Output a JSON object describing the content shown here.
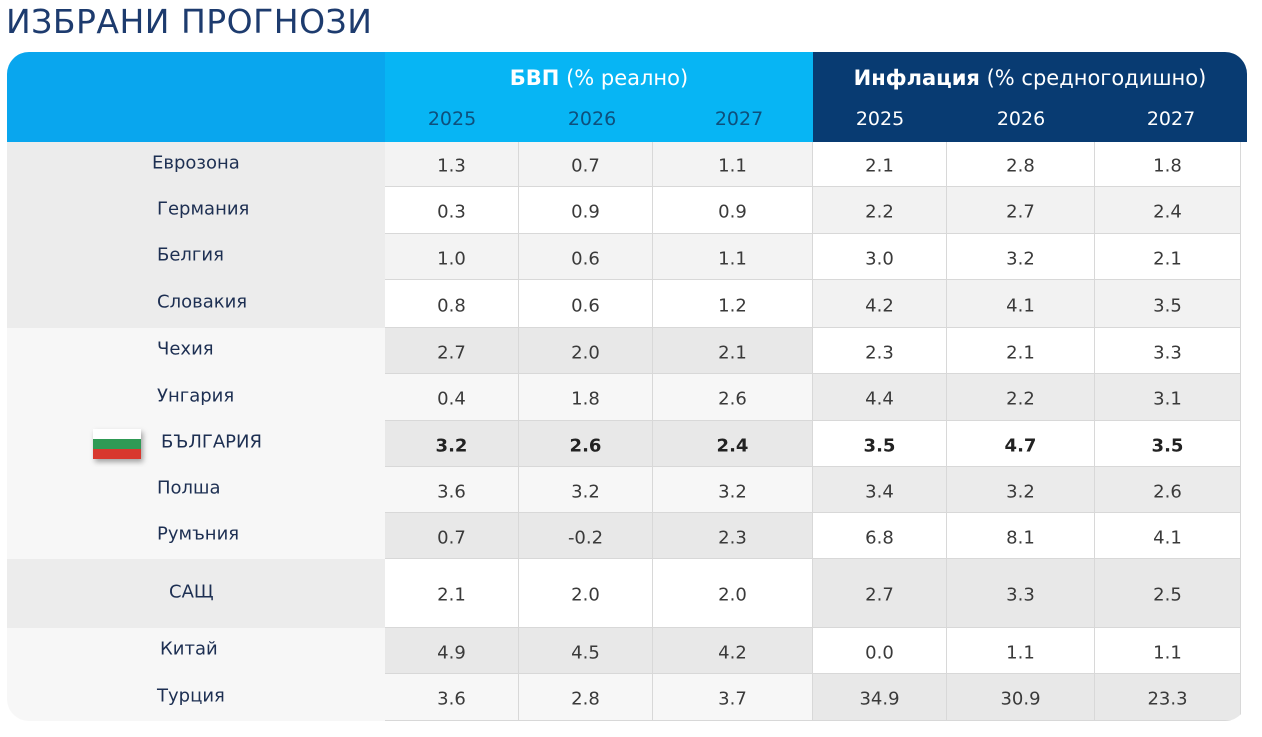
{
  "title": "ИЗБРАНИ ПРОГНОЗИ",
  "header": {
    "gdp_bold": "БВП",
    "gdp_rest": " (% реално)",
    "inf_bold": "Инфлация",
    "inf_rest": " (% средногодишно)",
    "years": [
      "2025",
      "2026",
      "2027"
    ]
  },
  "rows": [
    {
      "name": "Еврозона",
      "gdp": [
        "1.3",
        "0.7",
        "1.1"
      ],
      "inf": [
        "2.1",
        "2.8",
        "1.8"
      ]
    },
    {
      "name": "Германия",
      "gdp": [
        "0.3",
        "0.9",
        "0.9"
      ],
      "inf": [
        "2.2",
        "2.7",
        "2.4"
      ]
    },
    {
      "name": "Белгия",
      "gdp": [
        "1.0",
        "0.6",
        "1.1"
      ],
      "inf": [
        "3.0",
        "3.2",
        "2.1"
      ]
    },
    {
      "name": "Словакия",
      "gdp": [
        "0.8",
        "0.6",
        "1.2"
      ],
      "inf": [
        "4.2",
        "4.1",
        "3.5"
      ]
    },
    {
      "name": "Чехия",
      "gdp": [
        "2.7",
        "2.0",
        "2.1"
      ],
      "inf": [
        "2.3",
        "2.1",
        "3.3"
      ]
    },
    {
      "name": "Унгария",
      "gdp": [
        "0.4",
        "1.8",
        "2.6"
      ],
      "inf": [
        "4.4",
        "2.2",
        "3.1"
      ]
    },
    {
      "name": "БЪЛГАРИЯ",
      "gdp": [
        "3.2",
        "2.6",
        "2.4"
      ],
      "inf": [
        "3.5",
        "4.7",
        "3.5"
      ]
    },
    {
      "name": "Полша",
      "gdp": [
        "3.6",
        "3.2",
        "3.2"
      ],
      "inf": [
        "3.4",
        "3.2",
        "2.6"
      ]
    },
    {
      "name": "Румъния",
      "gdp": [
        "0.7",
        "-0.2",
        "2.3"
      ],
      "inf": [
        "6.8",
        "8.1",
        "4.1"
      ]
    },
    {
      "name": "САЩ",
      "gdp": [
        "2.1",
        "2.0",
        "2.0"
      ],
      "inf": [
        "2.7",
        "3.3",
        "2.5"
      ]
    },
    {
      "name": "Китай",
      "gdp": [
        "4.9",
        "4.5",
        "4.2"
      ],
      "inf": [
        "0.0",
        "1.1",
        "1.1"
      ]
    },
    {
      "name": "Турция",
      "gdp": [
        "3.6",
        "2.8",
        "3.7"
      ],
      "inf": [
        "34.9",
        "30.9",
        "23.3"
      ]
    }
  ],
  "highlight_row": 6,
  "colors": {
    "header_left": "#09a6ee",
    "header_gdp": "#07b5f4",
    "header_inflation": "#083b72",
    "title": "#1d3b6e",
    "flag": [
      "#ffffff",
      "#2f9a55",
      "#d8382e"
    ]
  }
}
